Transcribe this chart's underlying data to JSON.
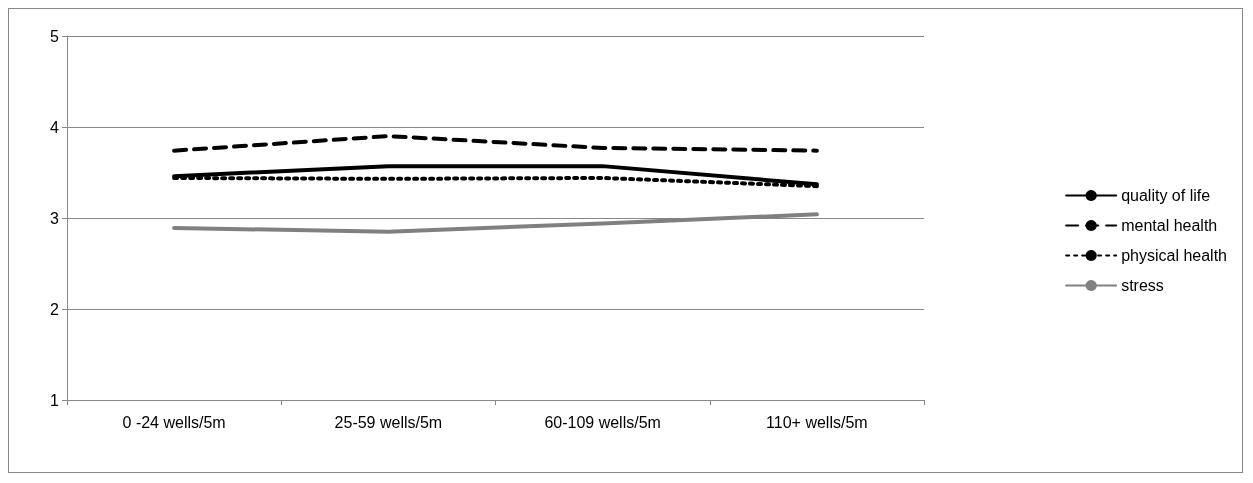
{
  "chart_data": {
    "type": "line",
    "categories": [
      "0 -24 wells/5m",
      "25-59 wells/5m",
      "60-109 wells/5m",
      "110+ wells/5m"
    ],
    "series": [
      {
        "name": "quality of life",
        "color": "#000000",
        "line_style": "solid",
        "values": [
          3.46,
          3.57,
          3.57,
          3.37
        ]
      },
      {
        "name": "mental health",
        "color": "#000000",
        "line_style": "dashed",
        "values": [
          3.74,
          3.9,
          3.77,
          3.74
        ]
      },
      {
        "name": "physical health",
        "color": "#000000",
        "line_style": "dotted",
        "values": [
          3.44,
          3.43,
          3.44,
          3.35
        ]
      },
      {
        "name": "stress",
        "color": "#808080",
        "line_style": "solid",
        "values": [
          2.89,
          2.85,
          2.94,
          3.04
        ]
      }
    ],
    "ylim": [
      1,
      5
    ],
    "yticks": [
      1,
      2,
      3,
      4,
      5
    ],
    "grid": "y",
    "legend": "right",
    "marker": "none"
  }
}
